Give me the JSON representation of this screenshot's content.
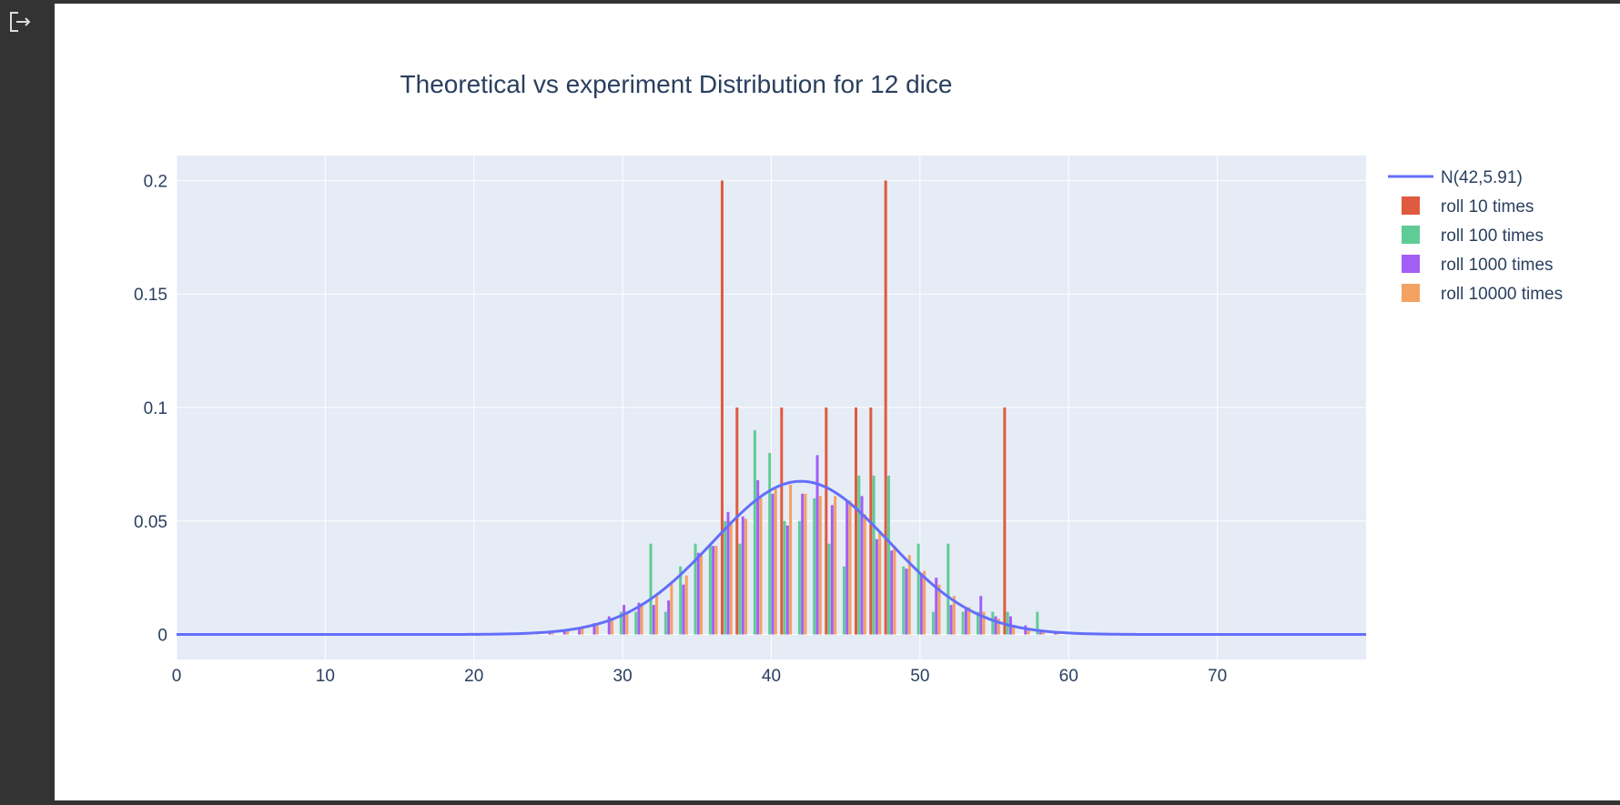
{
  "icons": {
    "exit": "exit-icon"
  },
  "colors": {
    "background": "#333333",
    "plot_bg": "#e5ecf6",
    "grid": "#ffffff",
    "text": "#2a3f5f"
  },
  "chart_data": {
    "type": "bar",
    "title": "Theoretical vs experiment Distribution for 12 dice",
    "xlabel": "",
    "ylabel": "",
    "xlim": [
      0,
      80
    ],
    "ylim": [
      -0.011,
      0.211
    ],
    "x_ticks": [
      0,
      10,
      20,
      30,
      40,
      50,
      60,
      70
    ],
    "x_tick_labels": [
      "0",
      "10",
      "20",
      "30",
      "40",
      "50",
      "60",
      "70"
    ],
    "y_ticks": [
      0,
      0.05,
      0.1,
      0.15,
      0.2
    ],
    "y_tick_labels": [
      "0",
      "0.05",
      "0.1",
      "0.15",
      "0.2"
    ],
    "grid": true,
    "legend_position": "right",
    "barmode": "group",
    "curve": {
      "name": "N(42,5.91)",
      "type": "line",
      "mean": 42,
      "std": 5.91,
      "color": "#636efa"
    },
    "series": [
      {
        "name": "roll 10 times",
        "color": "#e05a3f",
        "x": [
          37,
          38,
          41,
          44,
          46,
          47,
          48,
          56
        ],
        "values": [
          0.2,
          0.1,
          0.1,
          0.1,
          0.1,
          0.1,
          0.2,
          0.1
        ]
      },
      {
        "name": "roll 100 times",
        "color": "#5fcc97",
        "x": [
          30,
          31,
          32,
          33,
          34,
          35,
          36,
          37,
          38,
          39,
          40,
          41,
          42,
          43,
          44,
          45,
          46,
          47,
          48,
          49,
          50,
          51,
          52,
          53,
          54,
          55,
          56,
          57,
          58
        ],
        "values": [
          0.01,
          0.01,
          0.04,
          0.01,
          0.03,
          0.04,
          0.04,
          0.05,
          0.04,
          0.09,
          0.08,
          0.05,
          0.05,
          0.06,
          0.04,
          0.03,
          0.07,
          0.07,
          0.07,
          0.03,
          0.04,
          0.01,
          0.04,
          0.01,
          0.01,
          0.01,
          0.01,
          0.0,
          0.01
        ]
      },
      {
        "name": "roll 1000 times",
        "color": "#a35ef4",
        "x": [
          25,
          26,
          27,
          28,
          29,
          30,
          31,
          32,
          33,
          34,
          35,
          36,
          37,
          38,
          39,
          40,
          41,
          42,
          43,
          44,
          45,
          46,
          47,
          48,
          49,
          50,
          51,
          52,
          53,
          54,
          55,
          56,
          57,
          58,
          59
        ],
        "values": [
          0.001,
          0.002,
          0.003,
          0.005,
          0.008,
          0.013,
          0.014,
          0.013,
          0.015,
          0.022,
          0.036,
          0.039,
          0.054,
          0.052,
          0.068,
          0.062,
          0.048,
          0.062,
          0.079,
          0.057,
          0.059,
          0.061,
          0.042,
          0.037,
          0.029,
          0.027,
          0.025,
          0.013,
          0.012,
          0.017,
          0.008,
          0.008,
          0.004,
          0.001,
          0.001
        ]
      },
      {
        "name": "roll 10000 times",
        "color": "#f4a261",
        "x": [
          24,
          25,
          26,
          27,
          28,
          29,
          30,
          31,
          32,
          33,
          34,
          35,
          36,
          37,
          38,
          39,
          40,
          41,
          42,
          43,
          44,
          45,
          46,
          47,
          48,
          49,
          50,
          51,
          52,
          53,
          54,
          55,
          56,
          57,
          58,
          59,
          60
        ],
        "values": [
          0.001,
          0.001,
          0.002,
          0.003,
          0.004,
          0.006,
          0.01,
          0.013,
          0.017,
          0.022,
          0.026,
          0.035,
          0.039,
          0.05,
          0.051,
          0.06,
          0.064,
          0.066,
          0.062,
          0.061,
          0.061,
          0.059,
          0.053,
          0.045,
          0.039,
          0.035,
          0.028,
          0.022,
          0.017,
          0.012,
          0.01,
          0.007,
          0.004,
          0.003,
          0.002,
          0.001,
          0.001
        ]
      }
    ]
  }
}
